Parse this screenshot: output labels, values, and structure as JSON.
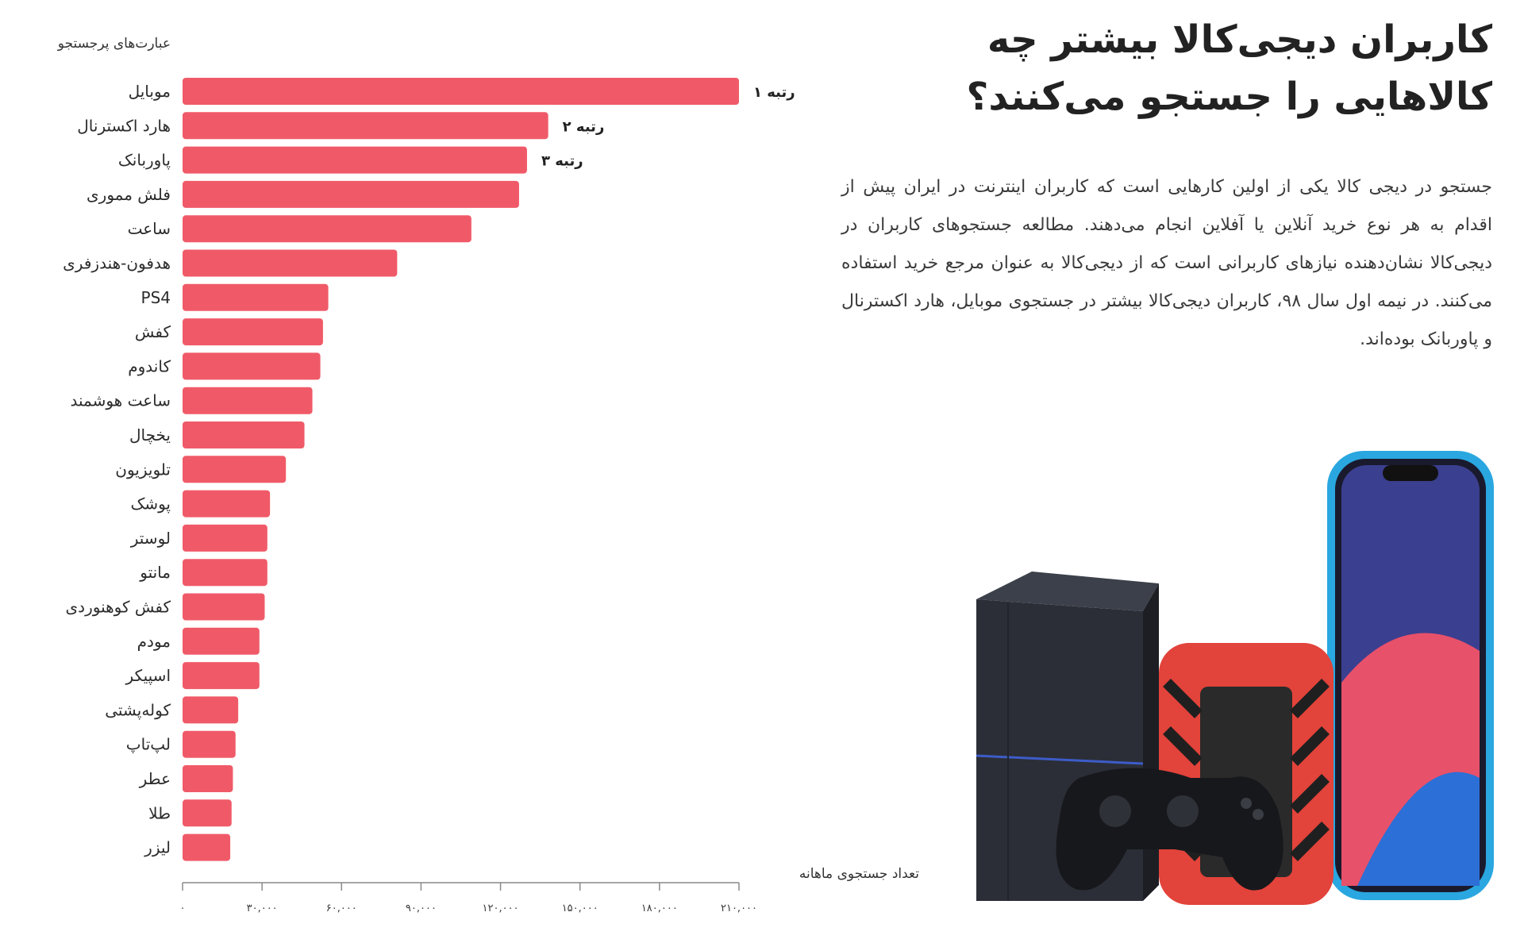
{
  "headline": "کاربران دیجی‌کالا بیشتر چه کالاهایی را جستجو می‌کنند؟",
  "body_text": "جستجو در دیجی کالا یکی از اولین کارهایی است که کاربران اینترنت در ایران پیش از اقدام به هر نوع خرید آنلاین یا آفلاین انجام می‌دهند. مطالعه جستجوهای کاربران در دیجی‌کالا نشان‌دهنده نیازهای کاربرانی است که از دیجی‌کالا به عنوان مرجع خرید استفاده می‌کنند. در نیمه اول سال ۹۸، کاربران دیجی‌کالا بیشتر در جستجوی موبایل، هارد اکسترنال و پاوربانک بوده‌اند.",
  "chart_data": {
    "type": "bar",
    "orientation": "horizontal",
    "ylabel": "عبارت‌های پرجستجو",
    "xlabel": "تعداد جستجوی ماهانه",
    "xlim": [
      0,
      210000
    ],
    "xticks": [
      0,
      30000,
      60000,
      90000,
      120000,
      150000,
      180000,
      210000
    ],
    "xtick_labels": [
      "۰",
      "۳۰,۰۰۰",
      "۶۰,۰۰۰",
      "۹۰,۰۰۰",
      "۱۲۰,۰۰۰",
      "۱۵۰,۰۰۰",
      "۱۸۰,۰۰۰",
      "۲۱۰,۰۰۰"
    ],
    "categories": [
      "موبایل",
      "هارد اکسترنال",
      "پاوربانک",
      "فلش مموری",
      "ساعت",
      "هدفون-هندزفری",
      "PS4",
      "کفش",
      "کاندوم",
      "ساعت هوشمند",
      "یخچال",
      "تلویزیون",
      "پوشک",
      "لوستر",
      "مانتو",
      "کفش کوهنوردی",
      "مودم",
      "اسپیکر",
      "کوله‌پشتی",
      "لپ‌تاپ",
      "عطر",
      "طلا",
      "لیزر"
    ],
    "values": [
      210000,
      138000,
      130000,
      127000,
      109000,
      81000,
      55000,
      53000,
      52000,
      49000,
      46000,
      39000,
      33000,
      32000,
      32000,
      31000,
      29000,
      29000,
      21000,
      20000,
      19000,
      18500,
      18000
    ],
    "annotations": [
      "رتبه ۱",
      "رتبه ۲",
      "رتبه ۳"
    ],
    "bar_color": "#f05a68"
  },
  "image": {
    "description_icons": [
      "console-icon",
      "hard-drive-icon",
      "gamepad-icon",
      "smartphone-icon"
    ]
  }
}
